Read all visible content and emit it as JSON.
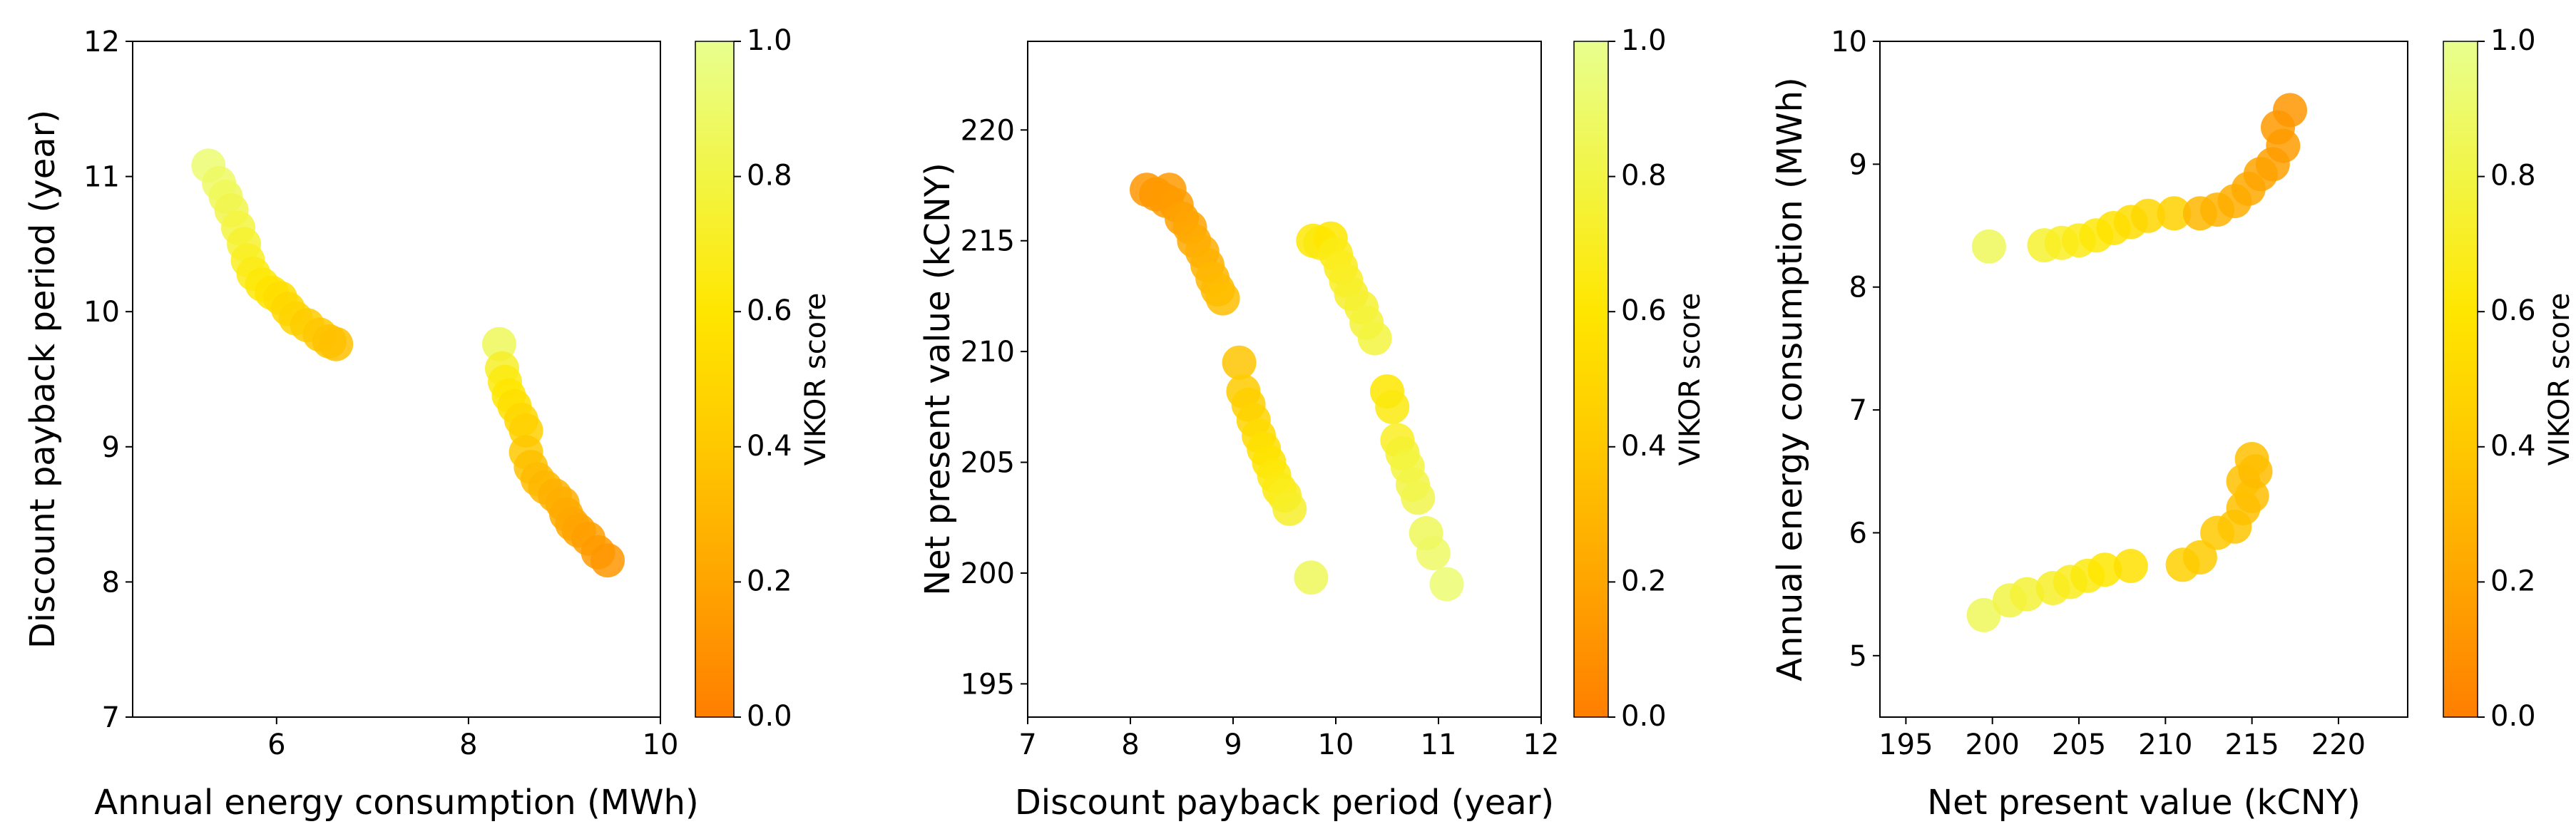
{
  "colorbar": {
    "label": "VIKOR score",
    "ticks": [
      "0.0",
      "0.2",
      "0.4",
      "0.6",
      "0.8",
      "1.0"
    ],
    "cmap": [
      "#ff7f00",
      "#ffa500",
      "#ffc800",
      "#ffe600",
      "#f2f545",
      "#e8ff8f"
    ]
  },
  "chart_data": [
    {
      "type": "scatter",
      "xlabel": "Annual energy consumption (MWh)",
      "ylabel": "Discount payback period (year)",
      "xlim": [
        4.5,
        10
      ],
      "ylim": [
        7,
        12
      ],
      "xticks": [
        "6",
        "8",
        "10"
      ],
      "yticks": [
        "7",
        "8",
        "9",
        "10",
        "11",
        "12"
      ],
      "points": [
        {
          "x": 5.29,
          "y": 11.08,
          "s": 0.92
        },
        {
          "x": 5.4,
          "y": 10.95,
          "s": 0.88
        },
        {
          "x": 5.47,
          "y": 10.85,
          "s": 0.85
        },
        {
          "x": 5.53,
          "y": 10.75,
          "s": 0.82
        },
        {
          "x": 5.6,
          "y": 10.62,
          "s": 0.78
        },
        {
          "x": 5.66,
          "y": 10.5,
          "s": 0.74
        },
        {
          "x": 5.7,
          "y": 10.38,
          "s": 0.7
        },
        {
          "x": 5.76,
          "y": 10.28,
          "s": 0.66
        },
        {
          "x": 5.85,
          "y": 10.2,
          "s": 0.62
        },
        {
          "x": 5.95,
          "y": 10.14,
          "s": 0.58
        },
        {
          "x": 6.04,
          "y": 10.1,
          "s": 0.54
        },
        {
          "x": 6.12,
          "y": 10.02,
          "s": 0.5
        },
        {
          "x": 6.2,
          "y": 9.95,
          "s": 0.47
        },
        {
          "x": 6.32,
          "y": 9.9,
          "s": 0.43
        },
        {
          "x": 6.45,
          "y": 9.83,
          "s": 0.4
        },
        {
          "x": 6.55,
          "y": 9.78,
          "s": 0.37
        },
        {
          "x": 6.62,
          "y": 9.76,
          "s": 0.35
        },
        {
          "x": 8.32,
          "y": 9.76,
          "s": 0.86
        },
        {
          "x": 8.35,
          "y": 9.58,
          "s": 0.72
        },
        {
          "x": 8.38,
          "y": 9.48,
          "s": 0.65
        },
        {
          "x": 8.42,
          "y": 9.38,
          "s": 0.6
        },
        {
          "x": 8.48,
          "y": 9.3,
          "s": 0.55
        },
        {
          "x": 8.55,
          "y": 9.2,
          "s": 0.5
        },
        {
          "x": 8.6,
          "y": 9.12,
          "s": 0.45
        },
        {
          "x": 8.6,
          "y": 8.96,
          "s": 0.4
        },
        {
          "x": 8.65,
          "y": 8.85,
          "s": 0.36
        },
        {
          "x": 8.72,
          "y": 8.76,
          "s": 0.33
        },
        {
          "x": 8.8,
          "y": 8.7,
          "s": 0.3
        },
        {
          "x": 8.9,
          "y": 8.64,
          "s": 0.27
        },
        {
          "x": 8.98,
          "y": 8.58,
          "s": 0.25
        },
        {
          "x": 9.02,
          "y": 8.5,
          "s": 0.23
        },
        {
          "x": 9.08,
          "y": 8.43,
          "s": 0.21
        },
        {
          "x": 9.15,
          "y": 8.38,
          "s": 0.19
        },
        {
          "x": 9.25,
          "y": 8.32,
          "s": 0.17
        },
        {
          "x": 9.35,
          "y": 8.22,
          "s": 0.14
        },
        {
          "x": 9.45,
          "y": 8.16,
          "s": 0.12
        }
      ]
    },
    {
      "type": "scatter",
      "xlabel": "Discount payback period (year)",
      "ylabel": "Net present value (kCNY)",
      "xlim": [
        7,
        12
      ],
      "ylim": [
        193.5,
        224
      ],
      "xticks": [
        "7",
        "8",
        "9",
        "10",
        "11",
        "12"
      ],
      "yticks": [
        "195",
        "200",
        "205",
        "210",
        "215",
        "220"
      ],
      "points": [
        {
          "x": 8.16,
          "y": 217.3,
          "s": 0.12
        },
        {
          "x": 8.25,
          "y": 217.1,
          "s": 0.13
        },
        {
          "x": 8.35,
          "y": 216.8,
          "s": 0.14
        },
        {
          "x": 8.38,
          "y": 217.3,
          "s": 0.14
        },
        {
          "x": 8.45,
          "y": 216.6,
          "s": 0.16
        },
        {
          "x": 8.5,
          "y": 216.0,
          "s": 0.18
        },
        {
          "x": 8.58,
          "y": 215.6,
          "s": 0.2
        },
        {
          "x": 8.62,
          "y": 215.0,
          "s": 0.22
        },
        {
          "x": 8.7,
          "y": 214.5,
          "s": 0.25
        },
        {
          "x": 8.75,
          "y": 213.9,
          "s": 0.27
        },
        {
          "x": 8.8,
          "y": 213.3,
          "s": 0.3
        },
        {
          "x": 8.85,
          "y": 212.8,
          "s": 0.32
        },
        {
          "x": 8.9,
          "y": 212.4,
          "s": 0.34
        },
        {
          "x": 9.06,
          "y": 209.5,
          "s": 0.38
        },
        {
          "x": 9.1,
          "y": 208.2,
          "s": 0.42
        },
        {
          "x": 9.15,
          "y": 207.6,
          "s": 0.45
        },
        {
          "x": 9.2,
          "y": 206.9,
          "s": 0.48
        },
        {
          "x": 9.25,
          "y": 206.2,
          "s": 0.52
        },
        {
          "x": 9.3,
          "y": 205.6,
          "s": 0.55
        },
        {
          "x": 9.35,
          "y": 205.0,
          "s": 0.58
        },
        {
          "x": 9.4,
          "y": 204.4,
          "s": 0.62
        },
        {
          "x": 9.45,
          "y": 203.8,
          "s": 0.65
        },
        {
          "x": 9.5,
          "y": 203.5,
          "s": 0.68
        },
        {
          "x": 9.55,
          "y": 202.9,
          "s": 0.72
        },
        {
          "x": 9.76,
          "y": 199.8,
          "s": 0.86
        },
        {
          "x": 9.78,
          "y": 215.0,
          "s": 0.62
        },
        {
          "x": 9.85,
          "y": 214.9,
          "s": 0.64
        },
        {
          "x": 9.95,
          "y": 215.1,
          "s": 0.6
        },
        {
          "x": 10.0,
          "y": 214.4,
          "s": 0.66
        },
        {
          "x": 10.05,
          "y": 213.8,
          "s": 0.68
        },
        {
          "x": 10.1,
          "y": 213.2,
          "s": 0.7
        },
        {
          "x": 10.15,
          "y": 212.6,
          "s": 0.72
        },
        {
          "x": 10.25,
          "y": 212.0,
          "s": 0.74
        },
        {
          "x": 10.3,
          "y": 211.3,
          "s": 0.76
        },
        {
          "x": 10.38,
          "y": 210.6,
          "s": 0.78
        },
        {
          "x": 10.5,
          "y": 208.2,
          "s": 0.6
        },
        {
          "x": 10.55,
          "y": 207.5,
          "s": 0.64
        },
        {
          "x": 10.6,
          "y": 206.0,
          "s": 0.7
        },
        {
          "x": 10.65,
          "y": 205.4,
          "s": 0.74
        },
        {
          "x": 10.7,
          "y": 204.8,
          "s": 0.78
        },
        {
          "x": 10.75,
          "y": 204.0,
          "s": 0.8
        },
        {
          "x": 10.8,
          "y": 203.4,
          "s": 0.82
        },
        {
          "x": 10.88,
          "y": 201.8,
          "s": 0.86
        },
        {
          "x": 10.95,
          "y": 200.9,
          "s": 0.88
        },
        {
          "x": 11.08,
          "y": 199.5,
          "s": 0.92
        }
      ]
    },
    {
      "type": "scatter",
      "xlabel": "Net present value (kCNY)",
      "ylabel": "Annual energy consumption (MWh)",
      "xlim": [
        193.5,
        224
      ],
      "ylim": [
        4.5,
        10
      ],
      "xticks": [
        "195",
        "200",
        "205",
        "210",
        "215",
        "220"
      ],
      "yticks": [
        "5",
        "6",
        "7",
        "8",
        "9",
        "10"
      ],
      "points": [
        {
          "x": 199.8,
          "y": 8.33,
          "s": 0.86
        },
        {
          "x": 203.0,
          "y": 8.34,
          "s": 0.74
        },
        {
          "x": 204.0,
          "y": 8.36,
          "s": 0.7
        },
        {
          "x": 205.0,
          "y": 8.38,
          "s": 0.66
        },
        {
          "x": 206.0,
          "y": 8.42,
          "s": 0.62
        },
        {
          "x": 207.0,
          "y": 8.48,
          "s": 0.58
        },
        {
          "x": 208.0,
          "y": 8.53,
          "s": 0.54
        },
        {
          "x": 209.0,
          "y": 8.58,
          "s": 0.5
        },
        {
          "x": 210.5,
          "y": 8.6,
          "s": 0.46
        },
        {
          "x": 212.0,
          "y": 8.6,
          "s": 0.3
        },
        {
          "x": 213.0,
          "y": 8.63,
          "s": 0.28
        },
        {
          "x": 214.0,
          "y": 8.7,
          "s": 0.25
        },
        {
          "x": 214.8,
          "y": 8.8,
          "s": 0.22
        },
        {
          "x": 215.5,
          "y": 8.92,
          "s": 0.2
        },
        {
          "x": 216.2,
          "y": 9.0,
          "s": 0.18
        },
        {
          "x": 216.8,
          "y": 9.15,
          "s": 0.15
        },
        {
          "x": 216.5,
          "y": 9.3,
          "s": 0.14
        },
        {
          "x": 217.2,
          "y": 9.44,
          "s": 0.12
        },
        {
          "x": 199.5,
          "y": 5.33,
          "s": 0.86
        },
        {
          "x": 201.0,
          "y": 5.45,
          "s": 0.8
        },
        {
          "x": 202.0,
          "y": 5.5,
          "s": 0.76
        },
        {
          "x": 203.5,
          "y": 5.55,
          "s": 0.72
        },
        {
          "x": 204.5,
          "y": 5.6,
          "s": 0.68
        },
        {
          "x": 205.5,
          "y": 5.65,
          "s": 0.64
        },
        {
          "x": 206.5,
          "y": 5.7,
          "s": 0.6
        },
        {
          "x": 208.0,
          "y": 5.73,
          "s": 0.56
        },
        {
          "x": 211.0,
          "y": 5.74,
          "s": 0.45
        },
        {
          "x": 212.0,
          "y": 5.8,
          "s": 0.42
        },
        {
          "x": 213.0,
          "y": 6.0,
          "s": 0.4
        },
        {
          "x": 214.0,
          "y": 6.05,
          "s": 0.38
        },
        {
          "x": 214.5,
          "y": 6.2,
          "s": 0.36
        },
        {
          "x": 215.0,
          "y": 6.3,
          "s": 0.34
        },
        {
          "x": 214.5,
          "y": 6.42,
          "s": 0.36
        },
        {
          "x": 215.2,
          "y": 6.5,
          "s": 0.33
        },
        {
          "x": 215.0,
          "y": 6.6,
          "s": 0.35
        }
      ]
    }
  ]
}
